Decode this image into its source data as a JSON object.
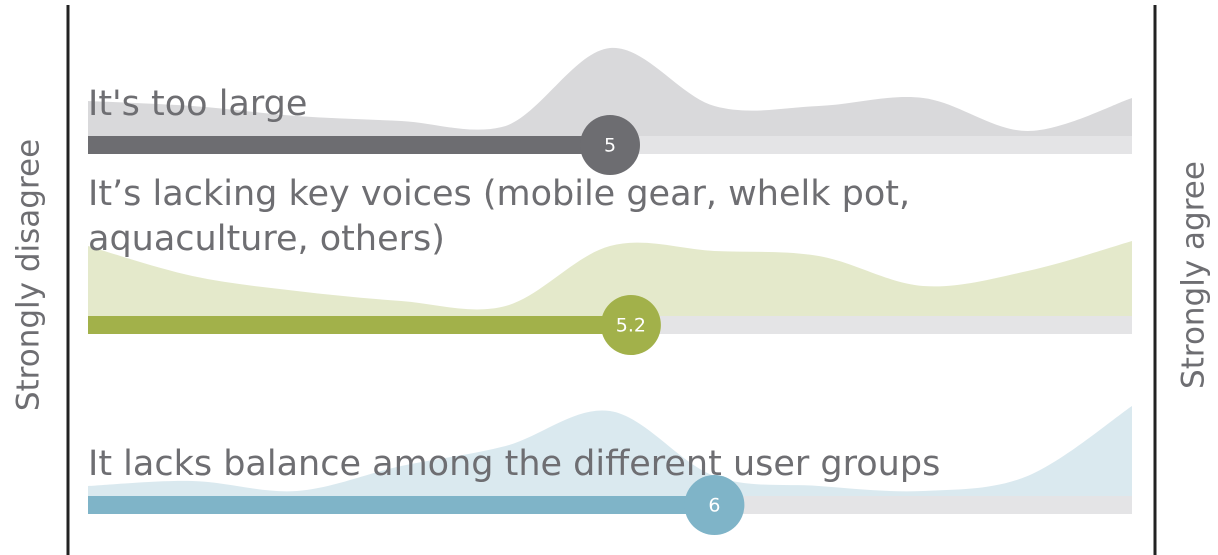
{
  "chart_data": {
    "type": "scale",
    "left_label": "Strongly disagree",
    "right_label": "Strongly agree",
    "xlim": [
      0,
      10
    ],
    "statements": [
      {
        "lines": [
          "It's too large"
        ],
        "value": 5,
        "color": "#6d6d71",
        "area_color": "#d9d9db",
        "distribution": [
          35,
          30,
          20,
          15,
          10,
          88,
          30,
          30,
          38,
          5,
          38
        ]
      },
      {
        "lines": [
          "It’s lacking key voices (mobile gear, whelk pot,",
          "aquaculture, others)"
        ],
        "value": 5.2,
        "color": "#a2b14a",
        "area_color": "#e4e9cb",
        "distribution": [
          70,
          40,
          25,
          15,
          10,
          70,
          65,
          60,
          30,
          45,
          75
        ]
      },
      {
        "lines": [
          "It lacks balance among the different user groups"
        ],
        "value": 6,
        "color": "#7fb4c8",
        "area_color": "#dae9ef",
        "distribution": [
          10,
          15,
          5,
          30,
          50,
          85,
          20,
          10,
          5,
          20,
          90
        ]
      }
    ]
  }
}
